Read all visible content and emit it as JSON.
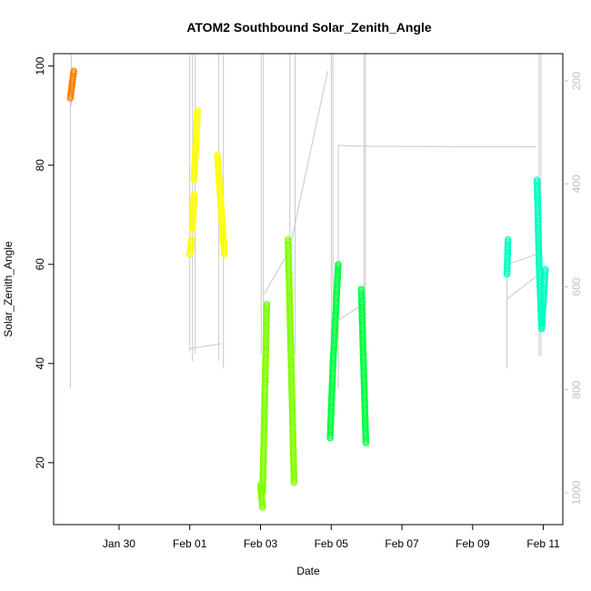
{
  "chart_data": {
    "type": "scatter",
    "title": "ATOM2 Southbound Solar_Zenith_Angle",
    "xlabel": "Date",
    "ylabel": "Solar_Zenith_Angle",
    "x_ticks": [
      "Jan 30",
      "Feb 01",
      "Feb 03",
      "Feb 05",
      "Feb 07",
      "Feb 09",
      "Feb 11"
    ],
    "x_tick_days": [
      30,
      32,
      34,
      36,
      38,
      40,
      42
    ],
    "x_range_days": [
      28.15,
      42.55
    ],
    "y_ticks": [
      20,
      40,
      60,
      80,
      100
    ],
    "ylim": [
      7.5,
      102.5
    ],
    "right_axis": {
      "ticks": [
        200,
        400,
        600,
        800,
        1000
      ],
      "range": [
        1062,
        147
      ],
      "color": "#c0c0c0"
    },
    "grid": false,
    "legend": "none",
    "series": [
      {
        "color": "#ff7f00",
        "segments": [
          {
            "x0": 28.62,
            "x1": 28.72,
            "y0": 93.5,
            "y1": 99.0
          }
        ]
      },
      {
        "color": "#ffff00",
        "segments": [
          {
            "x0": 32.0,
            "x1": 32.05,
            "y0": 62,
            "y1": 65
          },
          {
            "x0": 32.07,
            "x1": 32.12,
            "y0": 67,
            "y1": 74
          },
          {
            "x0": 32.12,
            "x1": 32.22,
            "y0": 77,
            "y1": 91
          },
          {
            "x0": 32.78,
            "x1": 32.98,
            "y0": 82,
            "y1": 62
          }
        ]
      },
      {
        "color": "#80ff00",
        "segments": [
          {
            "x0": 34.0,
            "x1": 34.06,
            "y0": 15.5,
            "y1": 11
          },
          {
            "x0": 34.06,
            "x1": 34.18,
            "y0": 14,
            "y1": 52
          },
          {
            "x0": 34.78,
            "x1": 34.95,
            "y0": 65,
            "y1": 16
          }
        ]
      },
      {
        "color": "#00ff40",
        "segments": [
          {
            "x0": 35.97,
            "x1": 36.05,
            "y0": 25,
            "y1": 40
          },
          {
            "x0": 36.05,
            "x1": 36.2,
            "y0": 40,
            "y1": 60
          },
          {
            "x0": 36.85,
            "x1": 36.98,
            "y0": 55,
            "y1": 24
          }
        ]
      },
      {
        "color": "#00ffc0",
        "segments": [
          {
            "x0": 40.97,
            "x1": 41.0,
            "y0": 58,
            "y1": 65
          },
          {
            "x0": 41.82,
            "x1": 41.88,
            "y0": 77,
            "y1": 60
          },
          {
            "x0": 41.88,
            "x1": 41.95,
            "y0": 60,
            "y1": 47
          },
          {
            "x0": 41.95,
            "x1": 42.06,
            "y0": 47,
            "y1": 59
          }
        ]
      }
    ],
    "track_lines": [
      [
        [
          28.65,
          92
        ],
        [
          28.65,
          102.5
        ]
      ],
      [
        [
          28.62,
          93
        ],
        [
          28.62,
          35
        ]
      ],
      [
        [
          32.0,
          102.5
        ],
        [
          32.0,
          42.5
        ]
      ],
      [
        [
          32.0,
          43
        ],
        [
          32.9,
          44
        ]
      ],
      [
        [
          32.08,
          102.5
        ],
        [
          32.08,
          40.5
        ]
      ],
      [
        [
          32.15,
          102.5
        ],
        [
          32.15,
          42
        ]
      ],
      [
        [
          32.82,
          102.5
        ],
        [
          32.82,
          40.5
        ]
      ],
      [
        [
          32.95,
          102.5
        ],
        [
          32.95,
          39
        ]
      ],
      [
        [
          34.02,
          102.5
        ],
        [
          34.02,
          42
        ]
      ],
      [
        [
          34.08,
          102.5
        ],
        [
          34.08,
          44
        ]
      ],
      [
        [
          34.1,
          54
        ],
        [
          34.92,
          64
        ]
      ],
      [
        [
          34.85,
          64
        ],
        [
          35.9,
          99
        ]
      ],
      [
        [
          34.83,
          102.5
        ],
        [
          34.83,
          44
        ]
      ],
      [
        [
          34.98,
          102.5
        ],
        [
          34.98,
          42
        ]
      ],
      [
        [
          36.0,
          102.5
        ],
        [
          36.0,
          44
        ]
      ],
      [
        [
          36.05,
          102.5
        ],
        [
          36.05,
          48
        ]
      ],
      [
        [
          36.18,
          84
        ],
        [
          37.12,
          83.8
        ]
      ],
      [
        [
          37.12,
          83.8
        ],
        [
          41.8,
          83.7
        ]
      ],
      [
        [
          36.2,
          84
        ],
        [
          36.2,
          35
        ]
      ],
      [
        [
          36.05,
          48
        ],
        [
          36.9,
          52
        ]
      ],
      [
        [
          36.93,
          102.5
        ],
        [
          36.93,
          44
        ]
      ],
      [
        [
          36.97,
          102.5
        ],
        [
          36.97,
          42
        ]
      ],
      [
        [
          40.97,
          58
        ],
        [
          40.97,
          39
        ]
      ],
      [
        [
          41.0,
          60
        ],
        [
          41.8,
          62
        ]
      ],
      [
        [
          40.97,
          53
        ],
        [
          41.88,
          58
        ]
      ],
      [
        [
          41.88,
          102.5
        ],
        [
          41.88,
          41.5
        ]
      ],
      [
        [
          41.93,
          102.5
        ],
        [
          41.93,
          41.5
        ]
      ]
    ]
  }
}
